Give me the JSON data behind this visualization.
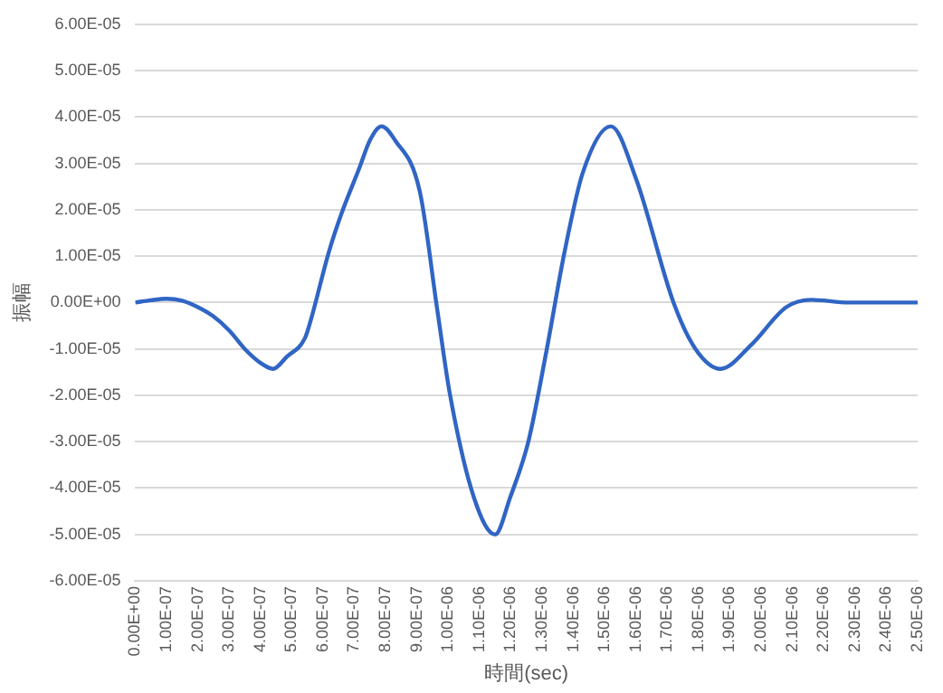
{
  "chart_data": {
    "type": "line",
    "xlabel": "時間(sec)",
    "ylabel": "振幅",
    "xlim": [
      0,
      2.5e-06
    ],
    "ylim": [
      -6e-05,
      6e-05
    ],
    "grid": "y",
    "marker": "none",
    "line_style": "solid",
    "xticks": [
      {
        "value": 0,
        "label": "0.00E+00"
      },
      {
        "value": 1e-07,
        "label": "1.00E-07"
      },
      {
        "value": 2e-07,
        "label": "2.00E-07"
      },
      {
        "value": 3e-07,
        "label": "3.00E-07"
      },
      {
        "value": 4e-07,
        "label": "4.00E-07"
      },
      {
        "value": 5e-07,
        "label": "5.00E-07"
      },
      {
        "value": 6e-07,
        "label": "6.00E-07"
      },
      {
        "value": 7e-07,
        "label": "7.00E-07"
      },
      {
        "value": 8e-07,
        "label": "8.00E-07"
      },
      {
        "value": 9e-07,
        "label": "9.00E-07"
      },
      {
        "value": 1e-06,
        "label": "1.00E-06"
      },
      {
        "value": 1.1e-06,
        "label": "1.10E-06"
      },
      {
        "value": 1.2e-06,
        "label": "1.20E-06"
      },
      {
        "value": 1.3e-06,
        "label": "1.30E-06"
      },
      {
        "value": 1.4e-06,
        "label": "1.40E-06"
      },
      {
        "value": 1.5e-06,
        "label": "1.50E-06"
      },
      {
        "value": 1.6e-06,
        "label": "1.60E-06"
      },
      {
        "value": 1.7e-06,
        "label": "1.70E-06"
      },
      {
        "value": 1.8e-06,
        "label": "1.80E-06"
      },
      {
        "value": 1.9e-06,
        "label": "1.90E-06"
      },
      {
        "value": 2e-06,
        "label": "2.00E-06"
      },
      {
        "value": 2.1e-06,
        "label": "2.10E-06"
      },
      {
        "value": 2.2e-06,
        "label": "2.20E-06"
      },
      {
        "value": 2.3e-06,
        "label": "2.30E-06"
      },
      {
        "value": 2.4e-06,
        "label": "2.40E-06"
      },
      {
        "value": 2.5e-06,
        "label": "2.50E-06"
      }
    ],
    "yticks": [
      {
        "value": -6e-05,
        "label": "-6.00E-05"
      },
      {
        "value": -5e-05,
        "label": "-5.00E-05"
      },
      {
        "value": -4e-05,
        "label": "-4.00E-05"
      },
      {
        "value": -3e-05,
        "label": "-3.00E-05"
      },
      {
        "value": -2e-05,
        "label": "-2.00E-05"
      },
      {
        "value": -1e-05,
        "label": "-1.00E-05"
      },
      {
        "value": 0,
        "label": "0.00E+00"
      },
      {
        "value": 1e-05,
        "label": "1.00E-05"
      },
      {
        "value": 2e-05,
        "label": "2.00E-05"
      },
      {
        "value": 3e-05,
        "label": "3.00E-05"
      },
      {
        "value": 4e-05,
        "label": "4.00E-05"
      },
      {
        "value": 5e-05,
        "label": "5.00E-05"
      },
      {
        "value": 6e-05,
        "label": "6.00E-05"
      }
    ],
    "series": [
      {
        "color": "#3065c4",
        "x": [
          0,
          5e-08,
          1e-07,
          1.5e-07,
          2e-07,
          2.5e-07,
          3e-07,
          3.5e-07,
          4e-07,
          4.4e-07,
          4.84e-07,
          5.42e-07,
          5.6e-07,
          6.19e-07,
          6.58e-07,
          7.16e-07,
          7.5e-07,
          7.87e-07,
          8.3e-07,
          9.09e-07,
          9.66e-07,
          1.005e-06,
          1.082e-06,
          1.15e-06,
          1.198e-06,
          1.256e-06,
          1.314e-06,
          1.372e-06,
          1.43e-06,
          1.52e-06,
          1.6e-06,
          1.72e-06,
          1.79e-06,
          1.87e-06,
          1.97e-06,
          2.08e-06,
          2.16e-06,
          2.28e-06,
          2.5e-06
        ],
        "values": [
          0,
          5e-07,
          8e-07,
          4e-07,
          -1e-06,
          -3e-06,
          -6e-06,
          -1e-05,
          -1.3e-05,
          -1.43e-05,
          -1.17e-05,
          -7.7e-06,
          -4e-06,
          1.1e-05,
          1.9e-05,
          2.9e-05,
          3.5e-05,
          3.8e-05,
          3.5e-05,
          2.4e-05,
          -2e-06,
          -1.96e-05,
          -4.2e-05,
          -5e-05,
          -4.2e-05,
          -3e-05,
          -1.04e-05,
          1.1e-05,
          2.8e-05,
          3.8e-05,
          2.67e-05,
          0,
          -1e-05,
          -1.43e-05,
          -9e-06,
          -1e-06,
          6e-07,
          0,
          0
        ]
      }
    ]
  }
}
